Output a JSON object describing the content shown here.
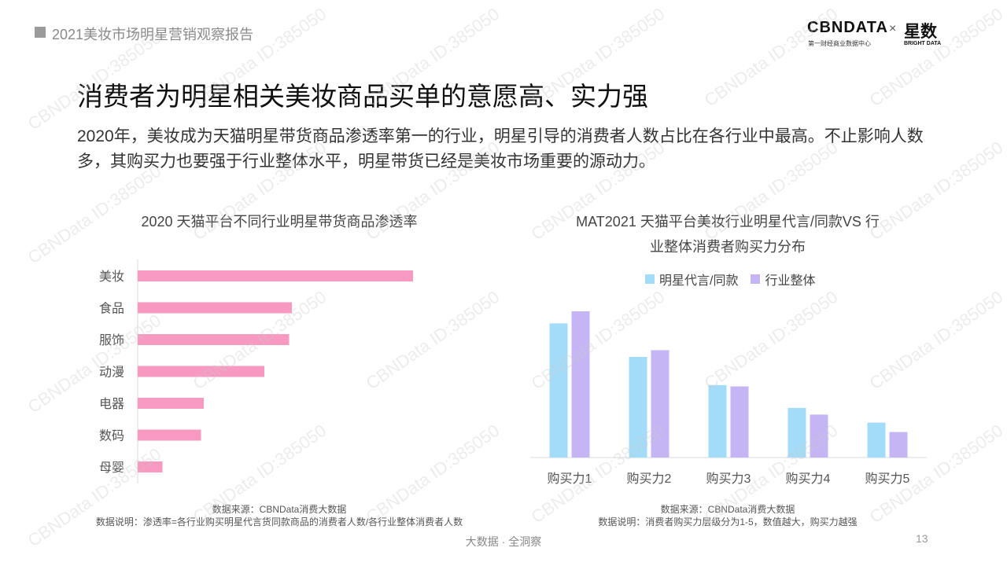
{
  "header": {
    "report_title": "2021美妆市场明星营销观察报告"
  },
  "logo": {
    "cbn": "CBNDATA",
    "cbn_sub": "第一财经商业数据中心",
    "times": "×",
    "xs": "星数",
    "xs_sub": "BRIGHT DATA"
  },
  "slide": {
    "title": "消费者为明星相关美妆商品买单的意愿高、实力强",
    "description": "2020年，美妆成为天猫明星带货商品渗透率第一的行业，明星引导的消费者人数占比在各行业中最高。不止影响人数多，其购买力也要强于行业整体水平，明星带货已经是美妆市场重要的源动力。"
  },
  "chart_data": [
    {
      "type": "bar",
      "orientation": "horizontal",
      "title": "2020 天猫平台不同行业明星带货商品渗透率",
      "categories": [
        "美妆",
        "食品",
        "服饰",
        "动漫",
        "电器",
        "数码",
        "母婴"
      ],
      "values": [
        100,
        56,
        55,
        46,
        24,
        23,
        9
      ],
      "color": "#f799c0",
      "value_unit": "relative index (no axis printed)",
      "source": "数据来源：CBNData消费大数据",
      "note": "数据说明：渗透率=各行业购买明星代言货同款商品的消费者人数/各行业整体消费者人数"
    },
    {
      "type": "bar",
      "title": "MAT2021 天猫平台美妆行业明星代言/同款VS 行业整体消费者购买力分布",
      "title_lines": [
        "MAT2021 天猫平台美妆行业明星代言/同款VS 行",
        "业整体消费者购买力分布"
      ],
      "categories": [
        "购买力1",
        "购买力2",
        "购买力3",
        "购买力4",
        "购买力5"
      ],
      "series": [
        {
          "name": "明星代言/同款",
          "values": [
            100,
            75,
            54,
            37,
            26
          ],
          "color": "#a3dcf9"
        },
        {
          "name": "行业整体",
          "values": [
            109,
            80,
            53,
            32,
            19
          ],
          "color": "#c6b5f5"
        }
      ],
      "legend_position": "top",
      "source": "数据来源：CBNData消费大数据",
      "note": "数据说明：消费者购买力层级分为1-5，数值越大，购买力越强"
    }
  ],
  "footer": {
    "tagline": "大数据 · 全洞察",
    "page_number": "13"
  },
  "watermark": {
    "text": "CBNData ID:385050"
  }
}
